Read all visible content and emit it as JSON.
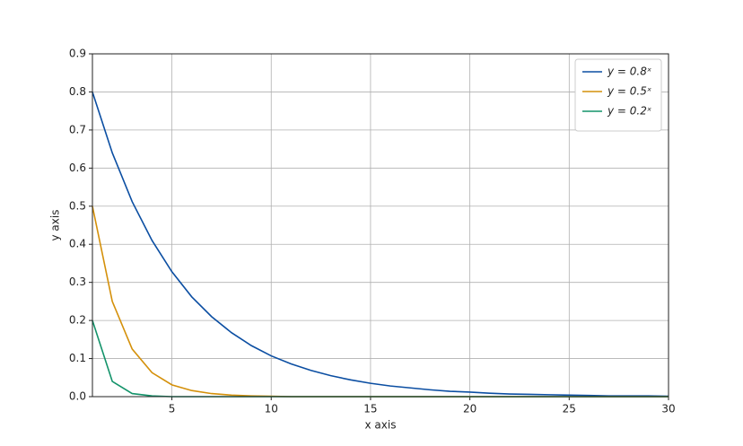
{
  "chart_data": {
    "type": "line",
    "xlabel": "x axis",
    "ylabel": "y axis",
    "x": [
      1,
      2,
      3,
      4,
      5,
      6,
      7,
      8,
      9,
      10,
      11,
      12,
      13,
      14,
      15,
      16,
      17,
      18,
      19,
      20,
      21,
      22,
      23,
      24,
      25,
      26,
      27,
      28,
      29,
      30
    ],
    "series": [
      {
        "name": "y = 0.8ˣ",
        "color": "#0b4ea2",
        "values": [
          0.8,
          0.64,
          0.512,
          0.41,
          0.328,
          0.262,
          0.21,
          0.168,
          0.134,
          0.107,
          0.086,
          0.069,
          0.055,
          0.044,
          0.035,
          0.028,
          0.023,
          0.018,
          0.014,
          0.012,
          0.009,
          0.007,
          0.006,
          0.005,
          0.004,
          0.003,
          0.002,
          0.002,
          0.002,
          0.001
        ]
      },
      {
        "name": "y = 0.5ˣ",
        "color": "#d4900a",
        "values": [
          0.5,
          0.25,
          0.125,
          0.063,
          0.031,
          0.016,
          0.008,
          0.004,
          0.002,
          0.001,
          0,
          0,
          0,
          0,
          0,
          0,
          0,
          0,
          0,
          0,
          0,
          0,
          0,
          0,
          0,
          0,
          0,
          0,
          0,
          0
        ]
      },
      {
        "name": "y = 0.2ˣ",
        "color": "#13936a",
        "values": [
          0.2,
          0.04,
          0.008,
          0.002,
          0,
          0,
          0,
          0,
          0,
          0,
          0,
          0,
          0,
          0,
          0,
          0,
          0,
          0,
          0,
          0,
          0,
          0,
          0,
          0,
          0,
          0,
          0,
          0,
          0,
          0
        ]
      }
    ],
    "xlim": [
      1,
      30
    ],
    "xticks": [
      5,
      10,
      15,
      20,
      25,
      30
    ],
    "ylim": [
      0,
      0.9
    ],
    "yticks": [
      {
        "value": 0,
        "label": "0.0"
      },
      0.1,
      0.2,
      0.3,
      0.4,
      0.5,
      0.6,
      0.7,
      0.8,
      0.9
    ],
    "grid": true,
    "legend": "upper right"
  }
}
